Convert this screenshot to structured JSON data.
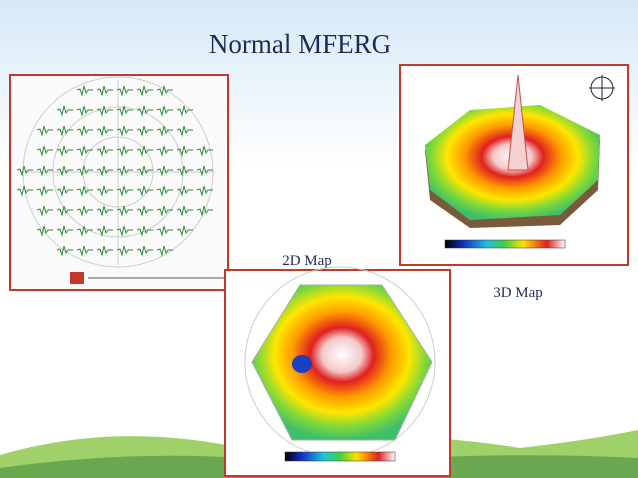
{
  "slide": {
    "title": "Normal MFERG",
    "captions": [
      "2D Map",
      "3D Map"
    ]
  }
}
